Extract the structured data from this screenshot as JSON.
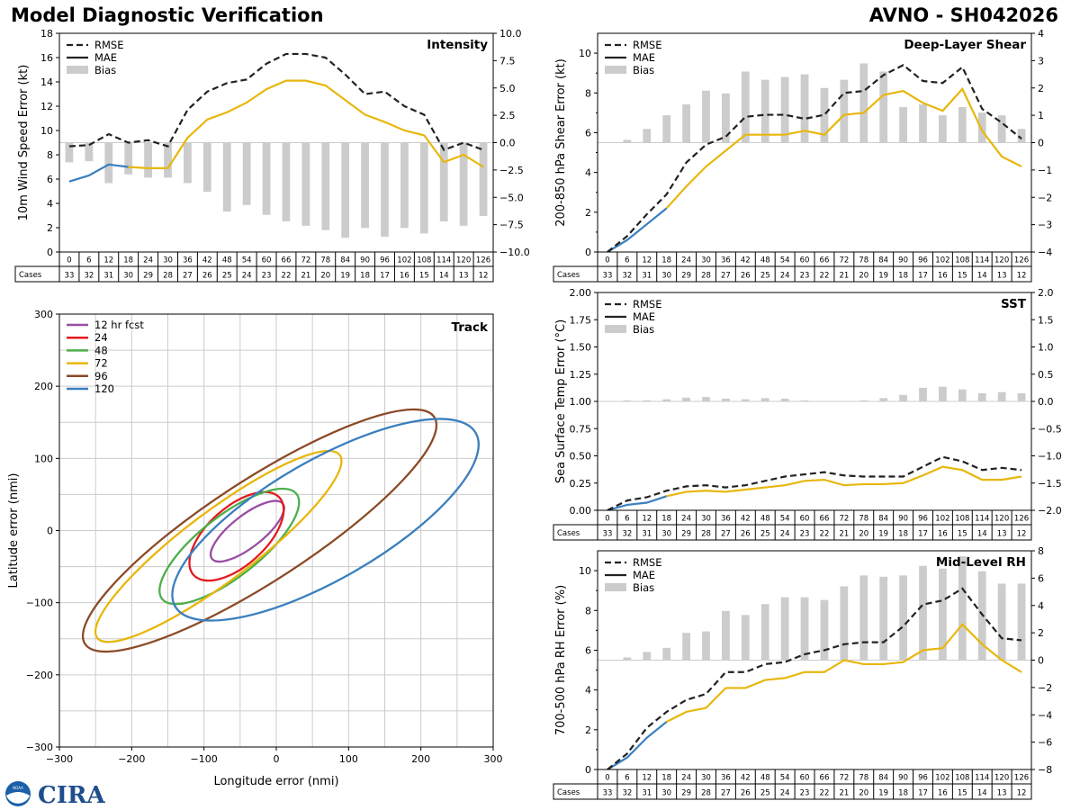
{
  "page": {
    "title": "Model Diagnostic Verification",
    "model_id": "AVNO - SH042026"
  },
  "colors": {
    "rmse": "#222222",
    "mae_early": "#3a7fbf",
    "mae_late": "#e8b70e",
    "bias": "#cccccc",
    "grid": "#cccccc"
  },
  "legend_labels": {
    "rmse": "RMSE",
    "mae": "MAE",
    "bias": "Bias"
  },
  "cases_label": "Cases",
  "taus": [
    "0",
    "6",
    "12",
    "18",
    "24",
    "30",
    "36",
    "42",
    "48",
    "54",
    "60",
    "66",
    "72",
    "78",
    "84",
    "90",
    "96",
    "102",
    "108",
    "114",
    "120",
    "126"
  ],
  "cases": [
    "33",
    "32",
    "31",
    "30",
    "29",
    "28",
    "27",
    "26",
    "25",
    "24",
    "23",
    "22",
    "21",
    "20",
    "19",
    "18",
    "17",
    "16",
    "15",
    "14",
    "13",
    "12"
  ],
  "logos": {
    "noaa": "NOAA",
    "cira": "CIRA"
  },
  "chart_data": [
    {
      "id": "intensity",
      "type": "line",
      "title": "Intensity",
      "ylabel": "10m Wind Speed Error (kt)",
      "ylim": [
        0,
        18
      ],
      "yticks": [
        "0",
        "2",
        "4",
        "6",
        "8",
        "10",
        "12",
        "14",
        "16",
        "18"
      ],
      "y2lim": [
        -10,
        10
      ],
      "y2ticks": [
        "−10.0",
        "−7.5",
        "−5.0",
        "−2.5",
        "0.0",
        "2.5",
        "5.0",
        "7.5",
        "10.0"
      ],
      "rmse": [
        8.7,
        8.8,
        9.7,
        9.0,
        9.2,
        8.7,
        11.7,
        13.2,
        13.9,
        14.2,
        15.5,
        16.3,
        16.3,
        16.0,
        14.6,
        13.0,
        13.2,
        12.0,
        11.3,
        8.4,
        9.0,
        8.4
      ],
      "mae": [
        5.8,
        6.3,
        7.2,
        7.0,
        6.9,
        6.9,
        9.4,
        10.9,
        11.5,
        12.3,
        13.4,
        14.1,
        14.1,
        13.7,
        12.5,
        11.3,
        10.7,
        10.0,
        9.6,
        7.4,
        8.0,
        7.0
      ],
      "bias": [
        -1.8,
        -1.7,
        -3.7,
        -2.9,
        -3.2,
        -3.2,
        -3.7,
        -4.5,
        -6.3,
        -5.7,
        -6.6,
        -7.2,
        -7.6,
        -8.0,
        -8.7,
        -7.8,
        -8.6,
        -7.8,
        -8.3,
        -7.2,
        -7.6,
        -6.7
      ]
    },
    {
      "id": "shear",
      "type": "line",
      "title": "Deep-Layer Shear",
      "ylabel": "200-850 hPa Shear Error (kt)",
      "ylim": [
        0,
        11
      ],
      "yticks": [
        "0",
        "2",
        "4",
        "6",
        "8",
        "10"
      ],
      "y2lim": [
        -4,
        4
      ],
      "y2ticks": [
        "−4",
        "−3",
        "−2",
        "−1",
        "0",
        "1",
        "2",
        "3",
        "4"
      ],
      "rmse": [
        0.0,
        0.8,
        1.9,
        2.9,
        4.5,
        5.4,
        5.8,
        6.8,
        6.9,
        6.9,
        6.7,
        6.9,
        8.0,
        8.1,
        8.9,
        9.4,
        8.6,
        8.5,
        9.3,
        7.2,
        6.5,
        5.7
      ],
      "mae": [
        0.0,
        0.6,
        1.4,
        2.2,
        3.3,
        4.3,
        5.1,
        5.9,
        5.9,
        5.9,
        6.1,
        5.9,
        6.9,
        7.0,
        7.9,
        8.1,
        7.5,
        7.1,
        8.2,
        6.1,
        4.8,
        4.3
      ],
      "bias": [
        0.0,
        0.1,
        0.5,
        1.0,
        1.4,
        1.9,
        1.8,
        2.6,
        2.3,
        2.4,
        2.5,
        2.0,
        2.3,
        2.9,
        2.6,
        1.3,
        1.4,
        1.0,
        1.3,
        1.1,
        1.0,
        0.5
      ]
    },
    {
      "id": "sst",
      "type": "line",
      "title": "SST",
      "ylabel": "Sea Surface Temp Error (°C)",
      "ylim": [
        0,
        2
      ],
      "yticks": [
        "0.00",
        "0.25",
        "0.50",
        "0.75",
        "1.00",
        "1.25",
        "1.50",
        "1.75",
        "2.00"
      ],
      "y2lim": [
        -2,
        2
      ],
      "y2ticks": [
        "−2.0",
        "−1.5",
        "−1.0",
        "−0.5",
        "0.0",
        "0.5",
        "1.0",
        "1.5",
        "2.0"
      ],
      "rmse": [
        0.0,
        0.09,
        0.12,
        0.18,
        0.22,
        0.23,
        0.21,
        0.23,
        0.27,
        0.31,
        0.33,
        0.35,
        0.32,
        0.31,
        0.31,
        0.31,
        0.4,
        0.49,
        0.45,
        0.37,
        0.39,
        0.37
      ],
      "mae": [
        0.0,
        0.05,
        0.07,
        0.13,
        0.17,
        0.18,
        0.17,
        0.19,
        0.21,
        0.23,
        0.27,
        0.28,
        0.23,
        0.24,
        0.24,
        0.25,
        0.32,
        0.4,
        0.37,
        0.28,
        0.28,
        0.31
      ],
      "bias": [
        0.0,
        0.02,
        0.02,
        0.04,
        0.07,
        0.08,
        0.05,
        0.04,
        0.06,
        0.05,
        0.02,
        0.01,
        -0.01,
        0.02,
        0.06,
        0.12,
        0.25,
        0.27,
        0.22,
        0.15,
        0.17,
        0.15
      ]
    },
    {
      "id": "rh",
      "type": "line",
      "title": "Mid-Level RH",
      "ylabel": "700-500 hPa RH Error (%)",
      "ylim": [
        0,
        11
      ],
      "yticks": [
        "0",
        "2",
        "4",
        "6",
        "8",
        "10"
      ],
      "y2lim": [
        -8,
        8
      ],
      "y2ticks": [
        "−8",
        "−6",
        "−4",
        "−2",
        "0",
        "2",
        "4",
        "6",
        "8"
      ],
      "rmse": [
        0.0,
        0.8,
        2.1,
        2.9,
        3.5,
        3.8,
        4.9,
        4.9,
        5.3,
        5.4,
        5.8,
        6.0,
        6.3,
        6.4,
        6.4,
        7.2,
        8.3,
        8.5,
        9.1,
        7.8,
        6.6,
        6.5
      ],
      "mae": [
        0.0,
        0.6,
        1.6,
        2.4,
        2.9,
        3.1,
        4.1,
        4.1,
        4.5,
        4.6,
        4.9,
        4.9,
        5.5,
        5.3,
        5.3,
        5.4,
        6.0,
        6.1,
        7.3,
        6.3,
        5.5,
        4.9
      ],
      "bias": [
        0.0,
        0.2,
        0.6,
        0.9,
        2.0,
        2.1,
        3.6,
        3.3,
        4.1,
        4.6,
        4.6,
        4.4,
        5.4,
        6.2,
        6.1,
        6.2,
        6.9,
        6.7,
        7.6,
        6.5,
        5.6,
        5.6
      ]
    },
    {
      "id": "track",
      "type": "scatter",
      "title": "Track",
      "xlabel": "Longitude error (nmi)",
      "ylabel": "Latitude error (nmi)",
      "xlim": [
        -300,
        300
      ],
      "ylim": [
        -300,
        300
      ],
      "xticks": [
        "−300",
        "−200",
        "−100",
        "0",
        "100",
        "200",
        "300"
      ],
      "yticks": [
        "−300",
        "−200",
        "−100",
        "0",
        "100",
        "200",
        "300"
      ],
      "ellipses": [
        {
          "name": "12 hr fcst",
          "color": "#984ea3",
          "cx": -40,
          "cy": -1,
          "rx": 62,
          "ry": 22,
          "angle": 38
        },
        {
          "name": "24",
          "color": "#e41a1c",
          "cx": -55,
          "cy": -8,
          "rx": 80,
          "ry": 40,
          "angle": 42
        },
        {
          "name": "48",
          "color": "#4daf4a",
          "cx": -65,
          "cy": -22,
          "rx": 118,
          "ry": 42,
          "angle": 38
        },
        {
          "name": "72",
          "color": "#e8b70e",
          "cx": -80,
          "cy": -22,
          "rx": 210,
          "ry": 48,
          "angle": 37
        },
        {
          "name": "96",
          "color": "#8b4a26",
          "cx": -23,
          "cy": 0,
          "rx": 288,
          "ry": 70,
          "angle": 33
        },
        {
          "name": "120",
          "color": "#3a7fbf",
          "cx": 68,
          "cy": 15,
          "rx": 240,
          "ry": 82,
          "angle": 30
        }
      ]
    }
  ]
}
